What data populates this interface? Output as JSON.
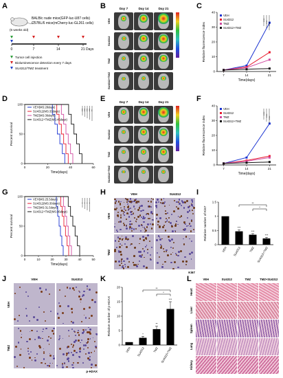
{
  "panels": {
    "A": "A",
    "B": "B",
    "C": "C",
    "D": "D",
    "E": "E",
    "F": "F",
    "G": "G",
    "H": "H",
    "I": "I",
    "J": "J",
    "K": "K",
    "L": "L"
  },
  "schema": {
    "line1": "BALB/c nude mice(GFP-luc-U87 cells)",
    "line2": "C57BL/6 mice(mCherry-luc-GL261 cells)",
    "age": "(5 weeks old)",
    "days_label": "Days",
    "ticks": [
      "0",
      "7",
      "14",
      "21"
    ],
    "legend": [
      "Tumor cell injection",
      "Bioluminescence detection every 7 days",
      "SU4312/TMZ treatment"
    ],
    "colors": {
      "green": "#2e9e3c",
      "red": "#d62020",
      "blue": "#2040c8"
    }
  },
  "imaging": {
    "days": [
      "Day 7",
      "Day 14",
      "Day 21"
    ],
    "rows": [
      "VEH",
      "SU4312",
      "TMZ",
      "SU4312+TMZ"
    ]
  },
  "ihc": {
    "H": {
      "cols": [
        "VEH",
        "SU4312"
      ],
      "rows": [
        "VEH",
        "TMZ"
      ],
      "marker": "Ki67"
    },
    "J": {
      "cols": [
        "VEH",
        "SU4312"
      ],
      "rows": [
        "VEH",
        "TMZ"
      ],
      "marker": "p-H2AX"
    }
  },
  "L": {
    "cols": [
      "VEH",
      "SU4312",
      "TMZ",
      "TMZ+SU4312"
    ],
    "rows": [
      "Heart",
      "Liver",
      "Spleen",
      "Lung",
      "Kidney"
    ]
  },
  "chart_data": [
    {
      "id": "C",
      "type": "line",
      "x": [
        7,
        14,
        21
      ],
      "xlabel": "Time(days)",
      "ylabel": "Relative fluorescence index",
      "ylim": [
        0,
        40
      ],
      "yticks": [
        0,
        10,
        20,
        30,
        40
      ],
      "series": [
        {
          "name": "VEH",
          "color": "#1a33d1",
          "values": [
            1,
            4,
            33
          ]
        },
        {
          "name": "SU4312",
          "color": "#e8192c",
          "values": [
            1,
            3,
            13
          ]
        },
        {
          "name": "TMZ",
          "color": "#d04aa0",
          "values": [
            1,
            2.5,
            8
          ]
        },
        {
          "name": "SU4312+TMZ",
          "color": "#111111",
          "values": [
            1,
            1.5,
            2
          ]
        }
      ],
      "sig": [
        "****",
        "****",
        "****"
      ]
    },
    {
      "id": "D",
      "type": "line",
      "xlabel": "Time(days)",
      "ylabel": "Percent survival",
      "xlim": [
        0,
        60
      ],
      "xticks": [
        0,
        20,
        40,
        60
      ],
      "ylim": [
        0,
        100
      ],
      "yticks": [
        0,
        50,
        100
      ],
      "series": [
        {
          "name": "VEH(MS:28days)",
          "color": "#1a33d1",
          "drop": [
            22,
            35
          ]
        },
        {
          "name": "SU4312(MS:33days)",
          "color": "#e8192c",
          "drop": [
            26,
            38
          ]
        },
        {
          "name": "TMZ(MS:36days)",
          "color": "#d04aa0",
          "drop": [
            30,
            42
          ]
        },
        {
          "name": "SU4312+TMZ(MS:45days)",
          "color": "#111111",
          "drop": [
            36,
            50
          ]
        }
      ],
      "sig": [
        "***",
        "***",
        "***",
        "***",
        "**"
      ]
    },
    {
      "id": "F",
      "type": "line",
      "x": [
        7,
        14,
        21
      ],
      "xlabel": "Time(days)",
      "ylabel": "Relative fluorescence index",
      "ylim": [
        0,
        40
      ],
      "yticks": [
        0,
        10,
        20,
        30,
        40
      ],
      "series": [
        {
          "name": "VEH",
          "color": "#1a33d1",
          "values": [
            1,
            5,
            28
          ]
        },
        {
          "name": "SU4312",
          "color": "#e8192c",
          "values": [
            1,
            3,
            6
          ]
        },
        {
          "name": "TMZ",
          "color": "#d04aa0",
          "values": [
            1,
            2.5,
            5
          ]
        },
        {
          "name": "SU4312+TMZ",
          "color": "#111111",
          "values": [
            1,
            1.5,
            2
          ]
        }
      ],
      "sig": [
        "****",
        "****",
        "****"
      ]
    },
    {
      "id": "G",
      "type": "line",
      "xlabel": "Time(days)",
      "ylabel": "Percent survival",
      "xlim": [
        0,
        50
      ],
      "xticks": [
        0,
        10,
        20,
        30,
        40,
        50
      ],
      "ylim": [
        0,
        100
      ],
      "yticks": [
        0,
        50,
        100
      ],
      "series": [
        {
          "name": "VEH(MS:25.5days)",
          "color": "#1a33d1",
          "drop": [
            22,
            28
          ]
        },
        {
          "name": "SU4312(MS:30days)",
          "color": "#e8192c",
          "drop": [
            25,
            32
          ]
        },
        {
          "name": "TMZ(MS:31.5days)",
          "color": "#d04aa0",
          "drop": [
            27,
            34
          ]
        },
        {
          "name": "SU4312+TMZ(MS:36days)",
          "color": "#111111",
          "drop": [
            30,
            40
          ]
        }
      ],
      "sig": [
        "*",
        "*",
        "*",
        "*"
      ]
    },
    {
      "id": "I",
      "type": "bar",
      "categories": [
        "VEH",
        "SU4312",
        "TMZ",
        "SU4312+TMZ"
      ],
      "values": [
        1,
        0.47,
        0.35,
        0.22
      ],
      "errors": [
        0,
        0.05,
        0.04,
        0.04
      ],
      "ylabel": "Relative number of Ki67",
      "ylim": [
        0,
        1.5
      ],
      "yticks": [
        0,
        0.5,
        1,
        1.5
      ],
      "stars": [
        "",
        "***",
        "***",
        "***"
      ],
      "brackets": [
        "**",
        "*"
      ]
    },
    {
      "id": "K",
      "type": "bar",
      "categories": [
        "VEH",
        "SU4312",
        "TMZ",
        "SU4312+TMZ"
      ],
      "values": [
        1,
        2.5,
        5.5,
        12.5
      ],
      "errors": [
        0,
        0.5,
        1,
        2.5
      ],
      "ylabel": "Relative number of p-H2AX",
      "ylim": [
        0,
        20
      ],
      "yticks": [
        0,
        5,
        10,
        15,
        20
      ],
      "stars": [
        "",
        "*",
        "**",
        "***"
      ],
      "brackets": [
        "**",
        "*"
      ]
    }
  ]
}
